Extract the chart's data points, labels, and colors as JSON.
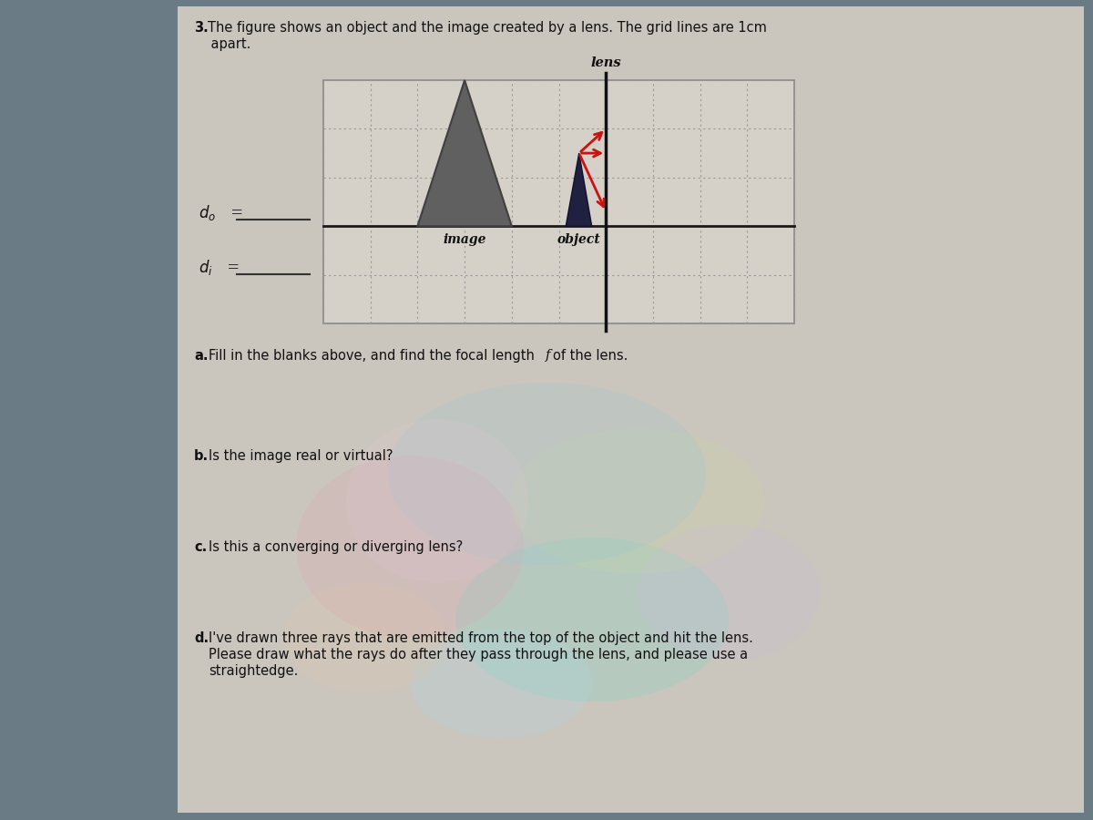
{
  "bg_color": "#6b7b85",
  "page_color_top": "#cdc8c0",
  "page_color_bottom": "#d8d4cc",
  "title_line1": "3. The figure shows an object and the image created by a lens. The grid lines are 1cm",
  "title_line2": "    apart.",
  "title_bold": "3.",
  "lens_label": "lens",
  "image_label": "image",
  "object_label": "object",
  "label_do": "d",
  "label_di": "d",
  "qa_bold": "a.",
  "qa_text": " Fill in the blanks above, and find the focal length ",
  "qa_italic": "f",
  "qa_end": "of the lens.",
  "qb_bold": "b.",
  "qb_text": " Is the image real or virtual?",
  "qc_bold": "c.",
  "qc_text": " Is this a converging or diverging lens?",
  "qd_bold": "d.",
  "qd_text": " I've drawn three rays that are emitted from the top of the object and hit the lens.",
  "qd_text2": "Please draw what the rays do after they pass through the lens, and please use a",
  "qd_text3": "straightedge.",
  "grid_bg": "#d5d0c8",
  "red": "#cc1111",
  "image_fill": "#606060",
  "image_edge": "#404040",
  "object_fill": "#202040",
  "object_edge": "#101030",
  "axis_color": "#1a1a1a",
  "lens_color": "#111111",
  "dot_color": "#999999"
}
